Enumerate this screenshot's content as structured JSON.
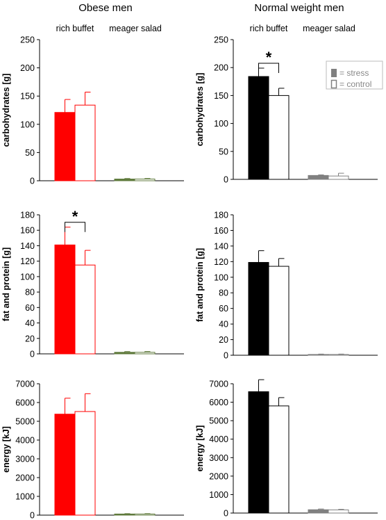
{
  "columns": [
    {
      "title": "Obese men",
      "category_labels": [
        "rich buffet",
        "meager salad"
      ]
    },
    {
      "title": "Normal weight men",
      "category_labels": [
        "rich buffet",
        "meager salad"
      ]
    }
  ],
  "legend": {
    "stress": "= stress",
    "control": "= control",
    "position": "top-right of top-right panel"
  },
  "chart_data": [
    {
      "type": "bar",
      "group": "Obese men",
      "categories": [
        "rich buffet",
        "meager salad"
      ],
      "ylabel": "carbohydrates [g]",
      "ylim": [
        0,
        250
      ],
      "yticks": [
        0,
        50,
        100,
        150,
        200,
        250
      ],
      "series": [
        {
          "name": "stress",
          "values": [
            121,
            3
          ],
          "errors": [
            23,
            1
          ]
        },
        {
          "name": "control",
          "values": [
            134,
            3
          ],
          "errors": [
            23,
            1
          ]
        }
      ],
      "significance": null,
      "colors": {
        "stress_fill": "#ff0000",
        "control_stroke": "#ff0000",
        "salad_fill": "#5f7a3c"
      }
    },
    {
      "type": "bar",
      "group": "Normal weight men",
      "categories": [
        "rich buffet",
        "meager salad"
      ],
      "ylabel": "carbohydrates [g]",
      "ylim": [
        0,
        250
      ],
      "yticks": [
        0,
        50,
        100,
        150,
        200,
        250
      ],
      "series": [
        {
          "name": "stress",
          "values": [
            184,
            7
          ],
          "errors": [
            15,
            1
          ]
        },
        {
          "name": "control",
          "values": [
            150,
            6
          ],
          "errors": [
            13,
            5
          ]
        }
      ],
      "significance": {
        "category": "rich buffet",
        "label": "*"
      },
      "colors": {
        "stress_fill": "#000000",
        "control_stroke": "#000000",
        "salad_fill": "#808080"
      }
    },
    {
      "type": "bar",
      "group": "Obese men",
      "categories": [
        "rich buffet",
        "meager salad"
      ],
      "ylabel": "fat and protein [g]",
      "ylim": [
        0,
        180
      ],
      "yticks": [
        0,
        20,
        40,
        60,
        80,
        100,
        120,
        140,
        160,
        180
      ],
      "series": [
        {
          "name": "stress",
          "values": [
            141,
            2
          ],
          "errors": [
            23,
            1
          ]
        },
        {
          "name": "control",
          "values": [
            115,
            2
          ],
          "errors": [
            19,
            1
          ]
        }
      ],
      "significance": {
        "category": "rich buffet",
        "label": "*"
      },
      "colors": {
        "stress_fill": "#ff0000",
        "control_stroke": "#ff0000",
        "salad_fill": "#5f7a3c"
      }
    },
    {
      "type": "bar",
      "group": "Normal weight men",
      "categories": [
        "rich buffet",
        "meager salad"
      ],
      "ylabel": "fat and protein [g]",
      "ylim": [
        0,
        180
      ],
      "yticks": [
        0,
        20,
        40,
        60,
        80,
        100,
        120,
        140,
        160,
        180
      ],
      "series": [
        {
          "name": "stress",
          "values": [
            119,
            1
          ],
          "errors": [
            15,
            0.5
          ]
        },
        {
          "name": "control",
          "values": [
            114,
            1
          ],
          "errors": [
            10,
            0.5
          ]
        }
      ],
      "significance": null,
      "colors": {
        "stress_fill": "#000000",
        "control_stroke": "#000000",
        "salad_fill": "#808080"
      }
    },
    {
      "type": "bar",
      "group": "Obese men",
      "categories": [
        "rich buffet",
        "meager salad"
      ],
      "ylabel": "energy [kJ]",
      "ylim": [
        0,
        7000
      ],
      "yticks": [
        0,
        1000,
        2000,
        3000,
        4000,
        5000,
        6000,
        7000
      ],
      "series": [
        {
          "name": "stress",
          "values": [
            5380,
            60
          ],
          "errors": [
            850,
            20
          ]
        },
        {
          "name": "control",
          "values": [
            5520,
            60
          ],
          "errors": [
            950,
            20
          ]
        }
      ],
      "significance": null,
      "colors": {
        "stress_fill": "#ff0000",
        "control_stroke": "#ff0000",
        "salad_fill": "#5f7a3c"
      }
    },
    {
      "type": "bar",
      "group": "Normal weight men",
      "categories": [
        "rich buffet",
        "meager salad"
      ],
      "ylabel": "energy [kJ]",
      "ylim": [
        0,
        7000
      ],
      "yticks": [
        0,
        1000,
        2000,
        3000,
        4000,
        5000,
        6000,
        7000
      ],
      "series": [
        {
          "name": "stress",
          "values": [
            6570,
            180
          ],
          "errors": [
            650,
            40
          ]
        },
        {
          "name": "control",
          "values": [
            5800,
            170
          ],
          "errors": [
            450,
            30
          ]
        }
      ],
      "significance": null,
      "colors": {
        "stress_fill": "#000000",
        "control_stroke": "#000000",
        "salad_fill": "#808080"
      }
    }
  ]
}
